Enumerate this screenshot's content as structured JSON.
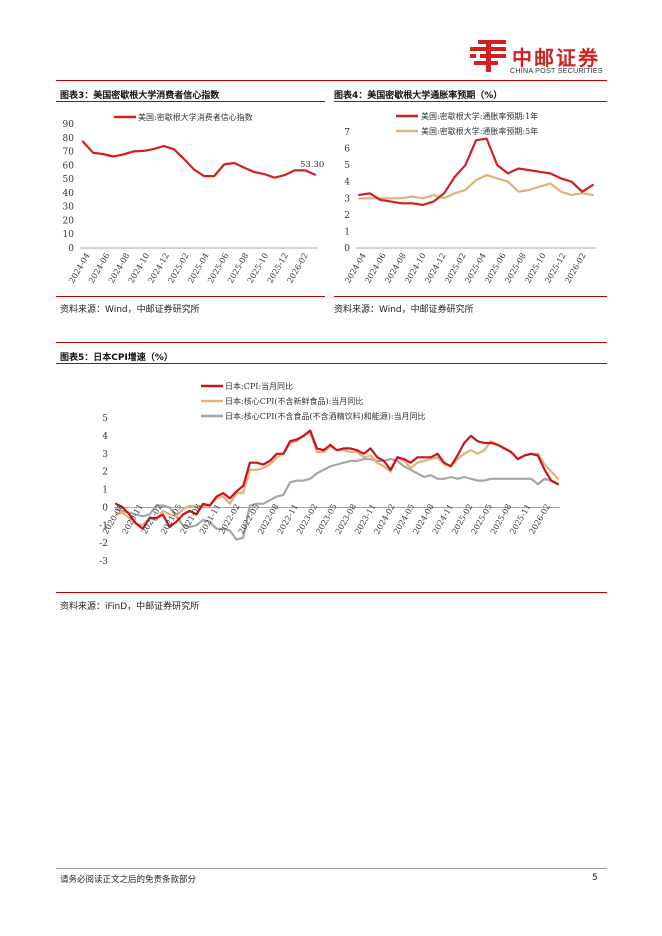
{
  "header": {
    "brand_cn": "中邮证券",
    "brand_en": "CHINA POST SECURITIES",
    "brand_color": "#d21f1f"
  },
  "figure3": {
    "title": "图表3：美国密歇根大学消费者信心指数",
    "source": "资料来源：Wind，中邮证券研究所"
  },
  "figure4": {
    "title": "图表4：美国密歇根大学通胀率预期（%）",
    "source": "资料来源：Wind，中邮证券研究所"
  },
  "figure5": {
    "title": "图表5：日本CPI增速（%）",
    "source": "资料来源：iFinD，中邮证券研究所"
  },
  "footer": {
    "disclaimer": "请务必阅读正文之后的免责条款部分",
    "page": "5"
  },
  "chart_data": [
    {
      "id": "fig3",
      "type": "line",
      "title": "美国密歇根大学消费者信心指数",
      "ylim": [
        0,
        90
      ],
      "yticks": [
        0,
        10,
        20,
        30,
        40,
        50,
        60,
        70,
        80,
        90
      ],
      "xtick_labels": [
        "2024-04",
        "2024-06",
        "2024-08",
        "2024-10",
        "2024-12",
        "2025-02",
        "2025-04",
        "2025-06",
        "2025-08",
        "2025-10",
        "2025-12",
        "2026-02"
      ],
      "annotation": "53.30",
      "series": [
        {
          "name": "美国:密歇根大学消费者信心指数",
          "color": "#d21f1f",
          "values": [
            77.2,
            69.1,
            68.2,
            66.4,
            67.9,
            70.1,
            70.5,
            71.8,
            74.0,
            71.7,
            64.7,
            57.0,
            52.2,
            52.2,
            60.7,
            61.7,
            58.2,
            55.1,
            53.6,
            51.0,
            52.9,
            56.4,
            56.4,
            53.3
          ]
        }
      ]
    },
    {
      "id": "fig4",
      "type": "line",
      "title": "美国密歇根大学通胀率预期",
      "ylim": [
        0,
        7
      ],
      "yticks": [
        0,
        1,
        2,
        3,
        4,
        5,
        6,
        7
      ],
      "xtick_labels": [
        "2024-04",
        "2024-06",
        "2024-08",
        "2024-10",
        "2024-12",
        "2025-02",
        "2025-04",
        "2025-06",
        "2025-08",
        "2025-10",
        "2025-12",
        "2026-02"
      ],
      "series": [
        {
          "name": "美国:密歇根大学:通胀率预期:1年",
          "color": "#d21f1f",
          "values": [
            3.2,
            3.3,
            2.9,
            2.8,
            2.7,
            2.7,
            2.6,
            2.8,
            3.3,
            4.3,
            5.0,
            6.5,
            6.6,
            5.0,
            4.5,
            4.8,
            4.7,
            4.6,
            4.5,
            4.2,
            4.0,
            3.4,
            3.8
          ]
        },
        {
          "name": "美国:密歇根大学:通胀率预期:5年",
          "color": "#e0b27a",
          "values": [
            3.0,
            3.0,
            3.0,
            3.0,
            3.0,
            3.1,
            3.0,
            3.2,
            3.0,
            3.3,
            3.5,
            4.1,
            4.4,
            4.2,
            4.0,
            3.4,
            3.5,
            3.7,
            3.9,
            3.4,
            3.2,
            3.3,
            3.2
          ]
        }
      ]
    },
    {
      "id": "fig5",
      "type": "line",
      "title": "日本CPI增速",
      "ylim": [
        -3,
        5
      ],
      "yticks": [
        -3,
        -2,
        -1,
        0,
        1,
        2,
        3,
        4,
        5
      ],
      "xtick_labels": [
        "2020-08",
        "2020-11",
        "2021-02",
        "2021-05",
        "2021-08",
        "2021-11",
        "2022-02",
        "2022-05",
        "2022-08",
        "2022-11",
        "2023-02",
        "2023-05",
        "2023-08",
        "2023-11",
        "2024-02",
        "2024-05",
        "2024-08",
        "2024-11",
        "2025-02",
        "2025-05",
        "2025-08",
        "2025-11",
        "2026-02"
      ],
      "series": [
        {
          "name": "日本:CPI:当月同比",
          "color": "#c8141e",
          "values": [
            0.2,
            0.0,
            -0.4,
            -0.9,
            -1.2,
            -0.6,
            -0.6,
            -0.4,
            -1.1,
            -0.8,
            -0.4,
            -0.2,
            -0.4,
            0.2,
            0.1,
            0.6,
            0.8,
            0.5,
            0.9,
            1.2,
            2.5,
            2.5,
            2.4,
            2.6,
            3.0,
            3.0,
            3.7,
            3.8,
            4.0,
            4.3,
            3.3,
            3.2,
            3.5,
            3.2,
            3.3,
            3.3,
            3.2,
            3.0,
            3.3,
            2.8,
            2.6,
            2.1,
            2.8,
            2.7,
            2.5,
            2.8,
            2.8,
            2.8,
            3.0,
            2.5,
            2.3,
            2.9,
            3.6,
            4.0,
            3.7,
            3.6,
            3.6,
            3.5,
            3.3,
            3.1,
            2.7,
            2.9,
            3.0,
            2.9,
            2.1,
            1.5,
            1.3
          ]
        },
        {
          "name": "日本:核心CPI(不含新鲜食品):当月同比",
          "color": "#e0b27a",
          "values": [
            -0.4,
            -0.3,
            -0.6,
            -0.9,
            -1.0,
            -0.6,
            -0.7,
            -0.2,
            -0.4,
            -0.5,
            -0.1,
            0.1,
            0.0,
            0.1,
            0.1,
            0.5,
            0.6,
            0.2,
            0.8,
            0.8,
            2.1,
            2.1,
            2.2,
            2.4,
            2.8,
            3.0,
            3.6,
            3.7,
            4.0,
            4.2,
            3.1,
            3.1,
            3.4,
            3.2,
            3.2,
            3.1,
            3.1,
            2.8,
            2.9,
            2.5,
            2.3,
            2.0,
            2.8,
            2.6,
            2.2,
            2.5,
            2.6,
            2.7,
            2.8,
            2.4,
            2.3,
            2.7,
            3.0,
            3.2,
            3.0,
            3.2,
            3.7,
            3.5,
            3.3,
            3.1,
            2.7,
            2.9,
            3.0,
            3.0,
            2.4,
            2.0,
            1.6
          ]
        },
        {
          "name": "日本:核心CPI(不含食品(不含酒精饮料)和能源):当月同比",
          "color": "#a6a6a6",
          "values": [
            -0.1,
            -0.2,
            -0.3,
            -0.4,
            -0.5,
            -0.4,
            0.1,
            0.1,
            0.0,
            -0.5,
            -1.0,
            -1.1,
            -1.0,
            -0.7,
            -0.8,
            -1.2,
            -1.2,
            -1.3,
            -1.8,
            -1.7,
            0.1,
            0.2,
            0.2,
            0.4,
            0.6,
            0.7,
            1.4,
            1.5,
            1.5,
            1.6,
            1.9,
            2.1,
            2.3,
            2.4,
            2.5,
            2.6,
            2.6,
            2.7,
            2.7,
            2.6,
            2.6,
            2.7,
            2.6,
            2.3,
            2.1,
            1.9,
            1.7,
            1.8,
            1.6,
            1.6,
            1.7,
            1.6,
            1.7,
            1.6,
            1.5,
            1.5,
            1.6,
            1.6,
            1.6,
            1.6,
            1.6,
            1.6,
            1.6,
            1.3,
            1.6,
            1.5,
            1.3
          ]
        }
      ]
    }
  ]
}
